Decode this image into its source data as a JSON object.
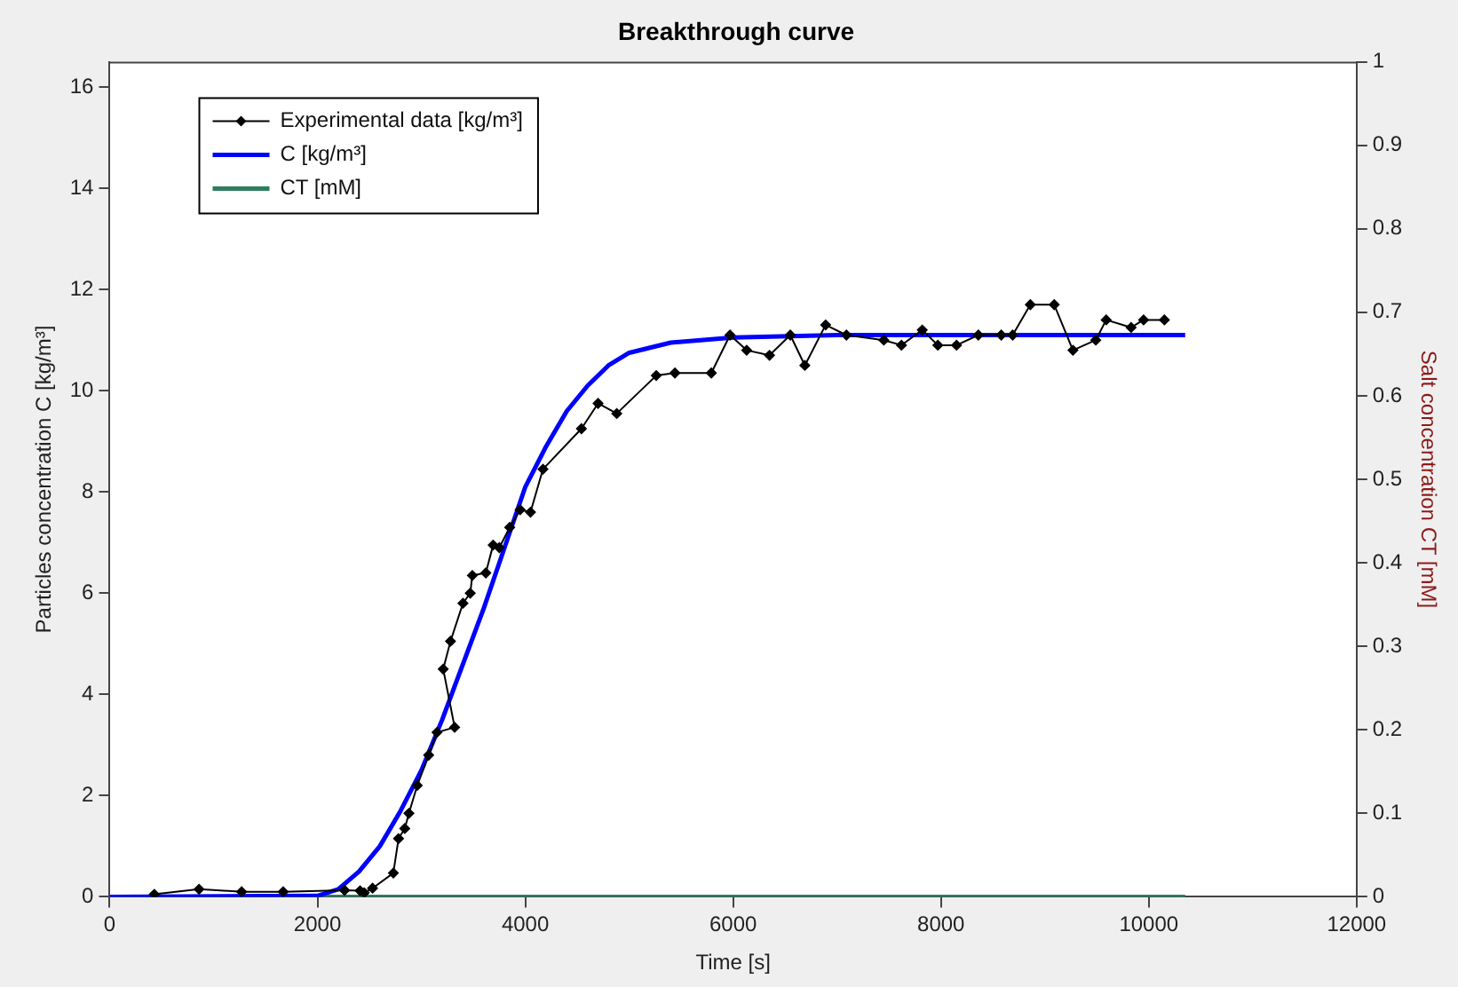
{
  "chart_data": {
    "type": "line",
    "title": "Breakthrough curve",
    "xlabel": "Time [s]",
    "ylabel": "Particles concentration C [kg/m³]",
    "y2label": "Salt concentration CT [mM]",
    "xlim": [
      0,
      12000
    ],
    "xticks": [
      0,
      2000,
      4000,
      6000,
      8000,
      10000,
      12000
    ],
    "ylim": [
      0,
      16.5
    ],
    "yticks": [
      0,
      2,
      4,
      6,
      8,
      10,
      12,
      14,
      16
    ],
    "y2lim": [
      0,
      1
    ],
    "y2ticks": [
      0,
      0.1,
      0.2,
      0.3,
      0.4,
      0.5,
      0.6,
      0.7,
      0.8,
      0.9,
      1
    ],
    "grid": false,
    "legend": "top left",
    "line_style": "solid",
    "series": [
      {
        "name": "Experimental data [kg/m³]",
        "color": "#000000",
        "marker": "diamond",
        "x": [
          430,
          860,
          1270,
          1670,
          2260,
          2410,
          2450,
          2530,
          2730,
          2780,
          2840,
          2880,
          2960,
          3070,
          3150,
          3320,
          3210,
          3280,
          3400,
          3470,
          3490,
          3620,
          3690,
          3750,
          3850,
          3950,
          4050,
          4170,
          4540,
          4700,
          4880,
          5260,
          5440,
          5790,
          5970,
          6130,
          6350,
          6550,
          6690,
          6890,
          7090,
          7450,
          7620,
          7820,
          7970,
          8150,
          8360,
          8580,
          8690,
          8860,
          9090,
          9270,
          9490,
          9590,
          9830,
          9950,
          10150
        ],
        "values": [
          0.05,
          0.15,
          0.1,
          0.1,
          0.13,
          0.12,
          0.08,
          0.17,
          0.47,
          1.15,
          1.35,
          1.65,
          2.2,
          2.8,
          3.25,
          3.35,
          4.5,
          5.05,
          5.8,
          6.0,
          6.35,
          6.4,
          6.95,
          6.9,
          7.3,
          7.65,
          7.6,
          8.45,
          9.25,
          9.75,
          9.55,
          10.3,
          10.35,
          10.35,
          11.1,
          10.8,
          10.7,
          11.1,
          10.5,
          11.3,
          11.1,
          11.0,
          10.9,
          11.2,
          10.9,
          10.9,
          11.1,
          11.1,
          11.1,
          11.7,
          11.7,
          10.8,
          11.0,
          11.4,
          11.25,
          11.4,
          11.4
        ]
      },
      {
        "name": "C [kg/m³]",
        "color": "#0000ff",
        "marker": "none",
        "x": [
          0,
          2000,
          2200,
          2400,
          2600,
          2800,
          3000,
          3200,
          3400,
          3600,
          3800,
          4000,
          4200,
          4400,
          4600,
          4800,
          5000,
          5400,
          6000,
          7000,
          10350
        ],
        "values": [
          0,
          0.02,
          0.15,
          0.5,
          1.0,
          1.7,
          2.5,
          3.5,
          4.6,
          5.7,
          6.9,
          8.1,
          8.9,
          9.6,
          10.1,
          10.5,
          10.75,
          10.95,
          11.05,
          11.1,
          11.1
        ]
      },
      {
        "name": "CT [mM]",
        "color": "#2e7d5e",
        "marker": "none",
        "x": [
          0,
          10350
        ],
        "values": [
          0,
          0
        ]
      }
    ]
  }
}
